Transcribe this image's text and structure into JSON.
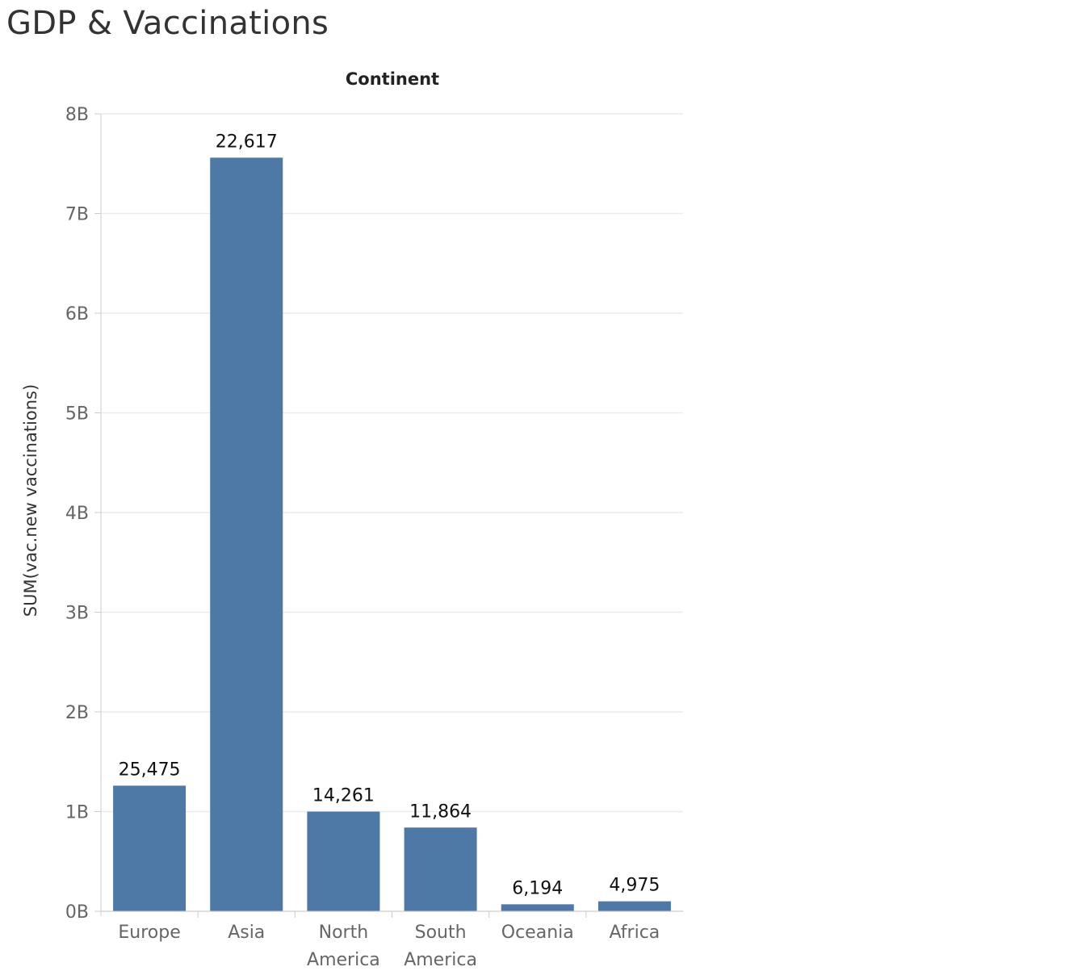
{
  "title": "GDP & Vaccinations",
  "chart_data": {
    "type": "bar",
    "column_header": "Continent",
    "ylabel": "SUM(vac.new vaccinations)",
    "categories": [
      [
        "Europe"
      ],
      [
        "Asia"
      ],
      [
        "North",
        "America"
      ],
      [
        "South",
        "America"
      ],
      [
        "Oceania"
      ],
      [
        "Africa"
      ]
    ],
    "values": [
      1260000000,
      7560000000,
      1000000000,
      840000000,
      70000000,
      100000000
    ],
    "data_labels": [
      "25,475",
      "22,617",
      "14,261",
      "11,864",
      "6,194",
      "4,975"
    ],
    "ylim": [
      0,
      8000000000
    ],
    "yticks": [
      {
        "value": 0,
        "label": "0B"
      },
      {
        "value": 1000000000,
        "label": "1B"
      },
      {
        "value": 2000000000,
        "label": "2B"
      },
      {
        "value": 3000000000,
        "label": "3B"
      },
      {
        "value": 4000000000,
        "label": "4B"
      },
      {
        "value": 5000000000,
        "label": "5B"
      },
      {
        "value": 6000000000,
        "label": "6B"
      },
      {
        "value": 7000000000,
        "label": "7B"
      },
      {
        "value": 8000000000,
        "label": "8B"
      }
    ],
    "bar_color": "#4e79a7",
    "grid": true
  }
}
